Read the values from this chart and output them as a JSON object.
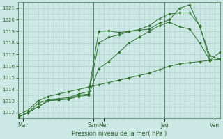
{
  "xlabel": "Pression niveau de la mer( hPa )",
  "bg_color": "#cce8e4",
  "grid_color": "#b0d0cc",
  "line_color": "#2d6e2d",
  "ylim": [
    1011.5,
    1021.5
  ],
  "yticks": [
    1012,
    1013,
    1014,
    1015,
    1016,
    1017,
    1018,
    1019,
    1020,
    1021
  ],
  "xlim": [
    0,
    20
  ],
  "day_positions": [
    0.5,
    7.5,
    8.5,
    14.5,
    19.5
  ],
  "day_labels": [
    "Mar",
    "Sam",
    "Mer",
    "Jeu",
    "Ven"
  ],
  "vline_positions": [
    0.5,
    7.5,
    14.5,
    19.5
  ],
  "series": [
    [
      1011.6,
      1012.0,
      1012.8,
      1013.1,
      1013.2,
      1013.3,
      1013.6,
      1013.8,
      1019.0,
      1019.05,
      1018.9,
      1019.0,
      1019.15,
      1019.5,
      1020.1,
      1020.5,
      1020.6,
      1020.6,
      1019.5,
      1016.5,
      1017.2
    ],
    [
      1011.6,
      1012.0,
      1012.5,
      1013.0,
      1013.1,
      1013.2,
      1013.5,
      1013.6,
      1018.0,
      1018.5,
      1018.7,
      1019.0,
      1019.1,
      1019.2,
      1019.7,
      1020.0,
      1021.0,
      1021.3,
      1019.4,
      1016.9,
      1016.6
    ],
    [
      1011.6,
      1012.0,
      1012.5,
      1013.05,
      1013.1,
      1013.15,
      1013.4,
      1013.5,
      1015.8,
      1016.4,
      1017.2,
      1018.0,
      1018.5,
      1019.0,
      1019.5,
      1019.8,
      1019.4,
      1019.2,
      1018.0,
      1016.5,
      1016.6
    ],
    [
      1011.8,
      1012.2,
      1013.0,
      1013.4,
      1013.6,
      1013.8,
      1014.0,
      1014.2,
      1014.4,
      1014.6,
      1014.8,
      1015.0,
      1015.2,
      1015.4,
      1015.7,
      1016.0,
      1016.2,
      1016.3,
      1016.4,
      1016.5,
      1016.6
    ]
  ]
}
